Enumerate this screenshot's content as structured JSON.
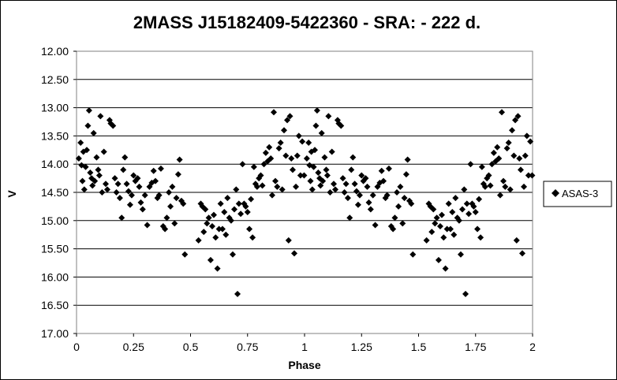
{
  "chart_data": {
    "type": "scatter",
    "title": "2MASS J15182409-5422360  - SRA: - 222 d.",
    "xlabel": "Phase",
    "ylabel": "V",
    "xlim": [
      0,
      2
    ],
    "ylim": [
      12.0,
      17.0
    ],
    "y_inverted": true,
    "grid": "horizontal",
    "legend_position": "right",
    "x_tick_labels": [
      "0",
      "0.25",
      "0.5",
      "0.75",
      "1",
      "1.25",
      "1.5",
      "1.75",
      "2"
    ],
    "y_tick_labels": [
      "12.00",
      "12.50",
      "13.00",
      "13.50",
      "14.00",
      "14.50",
      "15.00",
      "15.50",
      "16.00",
      "16.50",
      "17.00"
    ],
    "marker": "diamond",
    "marker_color": "#000000",
    "series": [
      {
        "name": "ASAS-3",
        "points": [
          [
            0.01,
            13.9
          ],
          [
            0.018,
            13.62
          ],
          [
            0.022,
            14.02
          ],
          [
            0.026,
            14.3
          ],
          [
            0.03,
            13.78
          ],
          [
            0.034,
            14.45
          ],
          [
            0.04,
            14.05
          ],
          [
            0.045,
            13.75
          ],
          [
            0.05,
            13.32
          ],
          [
            0.055,
            13.05
          ],
          [
            0.06,
            14.15
          ],
          [
            0.066,
            14.25
          ],
          [
            0.07,
            14.38
          ],
          [
            0.075,
            13.45
          ],
          [
            0.08,
            14.3
          ],
          [
            0.088,
            13.88
          ],
          [
            0.095,
            14.1
          ],
          [
            0.1,
            14.2
          ],
          [
            0.105,
            13.15
          ],
          [
            0.112,
            14.5
          ],
          [
            0.12,
            13.78
          ],
          [
            0.128,
            14.35
          ],
          [
            0.135,
            14.45
          ],
          [
            0.145,
            13.22
          ],
          [
            0.15,
            13.28
          ],
          [
            0.16,
            13.32
          ],
          [
            0.168,
            14.25
          ],
          [
            0.175,
            14.5
          ],
          [
            0.182,
            14.35
          ],
          [
            0.19,
            14.6
          ],
          [
            0.198,
            14.95
          ],
          [
            0.205,
            14.1
          ],
          [
            0.212,
            13.88
          ],
          [
            0.22,
            14.35
          ],
          [
            0.228,
            14.48
          ],
          [
            0.235,
            14.72
          ],
          [
            0.242,
            14.55
          ],
          [
            0.25,
            14.2
          ],
          [
            0.258,
            14.3
          ],
          [
            0.268,
            14.25
          ],
          [
            0.275,
            14.4
          ],
          [
            0.282,
            14.68
          ],
          [
            0.29,
            14.8
          ],
          [
            0.3,
            14.55
          ],
          [
            0.31,
            15.08
          ],
          [
            0.32,
            14.4
          ],
          [
            0.33,
            14.33
          ],
          [
            0.338,
            14.12
          ],
          [
            0.346,
            14.3
          ],
          [
            0.355,
            14.6
          ],
          [
            0.362,
            14.55
          ],
          [
            0.37,
            14.08
          ],
          [
            0.38,
            15.1
          ],
          [
            0.388,
            15.15
          ],
          [
            0.396,
            14.95
          ],
          [
            0.405,
            14.5
          ],
          [
            0.412,
            14.75
          ],
          [
            0.42,
            14.4
          ],
          [
            0.43,
            15.05
          ],
          [
            0.438,
            14.6
          ],
          [
            0.446,
            14.18
          ],
          [
            0.452,
            13.92
          ],
          [
            0.46,
            14.65
          ],
          [
            0.468,
            14.7
          ],
          [
            0.475,
            15.6
          ],
          [
            0.535,
            15.35
          ],
          [
            0.545,
            14.7
          ],
          [
            0.552,
            14.75
          ],
          [
            0.558,
            15.2
          ],
          [
            0.565,
            14.8
          ],
          [
            0.572,
            15.05
          ],
          [
            0.58,
            14.95
          ],
          [
            0.588,
            15.7
          ],
          [
            0.595,
            15.1
          ],
          [
            0.602,
            14.9
          ],
          [
            0.61,
            15.3
          ],
          [
            0.618,
            15.85
          ],
          [
            0.625,
            15.15
          ],
          [
            0.632,
            14.7
          ],
          [
            0.64,
            15.15
          ],
          [
            0.648,
            14.85
          ],
          [
            0.655,
            15.25
          ],
          [
            0.662,
            14.6
          ],
          [
            0.67,
            14.95
          ],
          [
            0.678,
            15.0
          ],
          [
            0.685,
            15.6
          ],
          [
            0.692,
            14.8
          ],
          [
            0.7,
            14.45
          ],
          [
            0.706,
            16.3
          ],
          [
            0.712,
            14.7
          ],
          [
            0.72,
            14.88
          ],
          [
            0.728,
            14.0
          ],
          [
            0.735,
            14.7
          ],
          [
            0.742,
            14.75
          ],
          [
            0.75,
            14.85
          ],
          [
            0.758,
            15.15
          ],
          [
            0.765,
            14.62
          ],
          [
            0.772,
            15.3
          ],
          [
            0.778,
            14.05
          ],
          [
            0.785,
            14.35
          ],
          [
            0.792,
            14.4
          ],
          [
            0.8,
            14.25
          ],
          [
            0.808,
            14.2
          ],
          [
            0.815,
            14.38
          ],
          [
            0.822,
            14.0
          ],
          [
            0.83,
            13.8
          ],
          [
            0.838,
            13.95
          ],
          [
            0.845,
            13.7
          ],
          [
            0.852,
            13.9
          ],
          [
            0.858,
            14.55
          ],
          [
            0.865,
            13.08
          ],
          [
            0.872,
            14.3
          ],
          [
            0.88,
            14.4
          ],
          [
            0.888,
            13.72
          ],
          [
            0.895,
            13.62
          ],
          [
            0.902,
            14.45
          ],
          [
            0.91,
            13.4
          ],
          [
            0.918,
            13.85
          ],
          [
            0.924,
            13.22
          ],
          [
            0.93,
            15.35
          ],
          [
            0.936,
            13.15
          ],
          [
            0.942,
            13.9
          ],
          [
            0.948,
            14.1
          ],
          [
            0.955,
            15.58
          ],
          [
            0.962,
            14.4
          ],
          [
            0.968,
            13.85
          ],
          [
            0.975,
            13.5
          ],
          [
            0.982,
            14.2
          ],
          [
            0.99,
            13.6
          ],
          [
            0.998,
            14.2
          ]
        ]
      }
    ]
  }
}
